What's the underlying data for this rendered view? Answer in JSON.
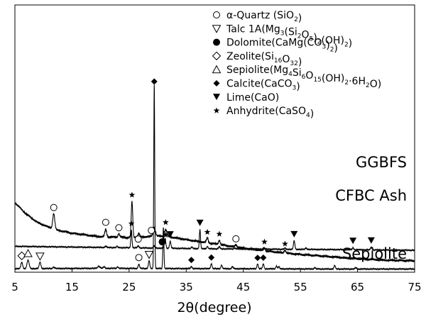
{
  "chart_data": {
    "type": "line",
    "title": "",
    "xlabel": "2θ(degree)",
    "ylabel": "",
    "xlim": [
      5,
      75
    ],
    "xticks": [
      5,
      15,
      25,
      35,
      45,
      55,
      65,
      75
    ],
    "grid": false,
    "legend_position": "top-right",
    "legend": [
      {
        "symbol": "circle-open",
        "parts": [
          [
            "α-Quartz (SiO",
            ""
          ],
          [
            "2",
            "sub"
          ],
          [
            ")",
            ""
          ]
        ]
      },
      {
        "symbol": "triangle-down-open",
        "parts": [
          [
            "Talc 1A(Mg",
            ""
          ],
          [
            "3",
            "sub"
          ],
          [
            "(Si",
            ""
          ],
          [
            "2",
            "sub"
          ],
          [
            "O",
            ""
          ],
          [
            "5",
            "sub"
          ],
          [
            ")",
            ""
          ],
          [
            "2",
            "sub"
          ],
          [
            "(OH)",
            ""
          ],
          [
            "2",
            "sub"
          ],
          [
            ")",
            ""
          ]
        ]
      },
      {
        "symbol": "circle-filled",
        "parts": [
          [
            "Dolomite(CaMg(CO",
            ""
          ],
          [
            "3",
            "sub"
          ],
          [
            ")",
            ""
          ],
          [
            "2",
            "sub"
          ],
          [
            ")",
            ""
          ]
        ]
      },
      {
        "symbol": "diamond-open",
        "parts": [
          [
            "Zeolite(Si",
            ""
          ],
          [
            "16",
            "sub"
          ],
          [
            "O",
            ""
          ],
          [
            "32",
            "sub"
          ],
          [
            ")",
            ""
          ]
        ]
      },
      {
        "symbol": "triangle-up-open",
        "parts": [
          [
            "Sepiolite(Mg",
            ""
          ],
          [
            "4",
            "sub"
          ],
          [
            "Si",
            ""
          ],
          [
            "6",
            "sub"
          ],
          [
            "O",
            ""
          ],
          [
            "15",
            "sub"
          ],
          [
            "(OH)",
            ""
          ],
          [
            "2",
            "sub"
          ],
          [
            "·6H",
            ""
          ],
          [
            "2",
            "sub"
          ],
          [
            "O)",
            ""
          ]
        ]
      },
      {
        "symbol": "diamond-filled",
        "parts": [
          [
            "Calcite(CaCO",
            ""
          ],
          [
            "3",
            "sub"
          ],
          [
            ")",
            ""
          ]
        ]
      },
      {
        "symbol": "triangle-down-filled",
        "parts": [
          [
            "Lime(CaO)",
            ""
          ]
        ]
      },
      {
        "symbol": "star",
        "parts": [
          [
            "Anhydrite(CaSO",
            ""
          ],
          [
            "4",
            "sub"
          ],
          [
            ")",
            ""
          ]
        ]
      }
    ],
    "series": [
      {
        "name": "GGBFS",
        "baseline": [
          [
            5,
            98
          ],
          [
            7,
            82
          ],
          [
            9,
            70
          ],
          [
            12,
            60
          ],
          [
            15,
            55
          ],
          [
            20,
            50
          ],
          [
            25,
            49
          ],
          [
            28,
            50
          ],
          [
            30,
            51
          ],
          [
            32,
            50
          ],
          [
            35,
            46
          ],
          [
            40,
            40
          ],
          [
            45,
            34
          ],
          [
            50,
            29
          ],
          [
            55,
            25
          ],
          [
            60,
            22
          ],
          [
            65,
            19
          ],
          [
            70,
            17
          ],
          [
            75,
            16
          ]
        ],
        "peaks": [
          {
            "x": 11.8,
            "h": 22,
            "w": 0.18
          },
          {
            "x": 20.9,
            "h": 11,
            "w": 0.15
          },
          {
            "x": 23.2,
            "h": 5,
            "w": 0.15
          },
          {
            "x": 25.5,
            "h": 51,
            "w": 0.13
          },
          {
            "x": 26.7,
            "h": 5,
            "w": 0.15
          },
          {
            "x": 29.4,
            "h": 13,
            "w": 0.2
          },
          {
            "x": 31.4,
            "h": 10,
            "w": 0.2
          },
          {
            "x": 38.7,
            "h": 7,
            "w": 0.15
          },
          {
            "x": 40.8,
            "h": 6,
            "w": 0.15
          },
          {
            "x": 43.7,
            "h": 3,
            "w": 0.15
          },
          {
            "x": 48.7,
            "h": 4,
            "w": 0.15
          },
          {
            "x": 52.3,
            "h": 4,
            "w": 0.15
          }
        ]
      },
      {
        "name": "CFBC  Ash",
        "baseline": [
          [
            5,
            36.5
          ],
          [
            20,
            35
          ],
          [
            40,
            33
          ],
          [
            60,
            32
          ],
          [
            75,
            31
          ]
        ],
        "peaks": [
          {
            "x": 20.9,
            "h": 2,
            "w": 0.12
          },
          {
            "x": 22.9,
            "h": 1.5,
            "w": 0.12
          },
          {
            "x": 25.4,
            "h": 25,
            "w": 0.1
          },
          {
            "x": 26.6,
            "h": 3,
            "w": 0.12
          },
          {
            "x": 29.4,
            "h": 3,
            "w": 0.12
          },
          {
            "x": 31.3,
            "h": 14,
            "w": 0.12
          },
          {
            "x": 32.2,
            "h": 10,
            "w": 0.12
          },
          {
            "x": 36.0,
            "h": 2,
            "w": 0.12
          },
          {
            "x": 37.4,
            "h": 27,
            "w": 0.1
          },
          {
            "x": 38.7,
            "h": 3,
            "w": 0.12
          },
          {
            "x": 40.8,
            "h": 3,
            "w": 0.12
          },
          {
            "x": 43.5,
            "h": 1.5,
            "w": 0.12
          },
          {
            "x": 48.6,
            "h": 2,
            "w": 0.12
          },
          {
            "x": 52.3,
            "h": 1.5,
            "w": 0.12
          },
          {
            "x": 53.9,
            "h": 12,
            "w": 0.12
          },
          {
            "x": 56.0,
            "h": 2,
            "w": 0.12
          },
          {
            "x": 64.2,
            "h": 3,
            "w": 0.12
          },
          {
            "x": 67.4,
            "h": 4,
            "w": 0.12
          }
        ]
      },
      {
        "name": "Sepiolite",
        "baseline": [
          [
            5,
            5
          ],
          [
            20,
            5.5
          ],
          [
            40,
            5
          ],
          [
            60,
            4.5
          ],
          [
            75,
            4.5
          ]
        ],
        "peaks": [
          {
            "x": 6.2,
            "h": 9,
            "w": 0.15
          },
          {
            "x": 7.3,
            "h": 12,
            "w": 0.18
          },
          {
            "x": 9.4,
            "h": 9,
            "w": 0.15
          },
          {
            "x": 11.8,
            "h": 2,
            "w": 0.15
          },
          {
            "x": 19.7,
            "h": 3,
            "w": 0.2
          },
          {
            "x": 20.6,
            "h": 2,
            "w": 0.15
          },
          {
            "x": 23.0,
            "h": 2,
            "w": 0.15
          },
          {
            "x": 26.7,
            "h": 6,
            "w": 0.12
          },
          {
            "x": 28.5,
            "h": 11,
            "w": 0.12
          },
          {
            "x": 29.4,
            "h": 262,
            "w": 0.08
          },
          {
            "x": 31.0,
            "h": 58,
            "w": 0.09
          },
          {
            "x": 35.9,
            "h": 3,
            "w": 0.12
          },
          {
            "x": 39.4,
            "h": 7,
            "w": 0.12
          },
          {
            "x": 41.2,
            "h": 5,
            "w": 0.12
          },
          {
            "x": 43.1,
            "h": 3,
            "w": 0.12
          },
          {
            "x": 47.5,
            "h": 7,
            "w": 0.12
          },
          {
            "x": 48.5,
            "h": 7,
            "w": 0.12
          },
          {
            "x": 50.8,
            "h": 4,
            "w": 0.12
          },
          {
            "x": 51.2,
            "h": 3,
            "w": 0.12
          },
          {
            "x": 57.5,
            "h": 2,
            "w": 0.12
          },
          {
            "x": 61.0,
            "h": 5,
            "w": 0.12
          },
          {
            "x": 64.7,
            "h": 2,
            "w": 0.12
          }
        ]
      }
    ],
    "markers": [
      {
        "symbol": "circle-open",
        "x": 11.8,
        "series": "GGBFS"
      },
      {
        "symbol": "circle-open",
        "x": 20.9,
        "series": "GGBFS"
      },
      {
        "symbol": "circle-open",
        "x": 23.2,
        "series": "GGBFS"
      },
      {
        "symbol": "star",
        "x": 25.5,
        "series": "GGBFS"
      },
      {
        "symbol": "diamond-filled",
        "x": 29.4,
        "series": "GGBFS",
        "y_override": 269
      },
      {
        "symbol": "circle-open",
        "x": 28.9,
        "series": "GGBFS"
      },
      {
        "symbol": "star",
        "x": 31.4,
        "series": "GGBFS"
      },
      {
        "symbol": "star",
        "x": 38.7,
        "series": "GGBFS"
      },
      {
        "symbol": "star",
        "x": 40.8,
        "series": "GGBFS"
      },
      {
        "symbol": "circle-open",
        "x": 43.7,
        "series": "GGBFS"
      },
      {
        "symbol": "star",
        "x": 48.7,
        "series": "GGBFS"
      },
      {
        "symbol": "star",
        "x": 52.3,
        "series": "GGBFS"
      },
      {
        "symbol": "star",
        "x": 25.4,
        "series": "CFBC  Ash"
      },
      {
        "symbol": "circle-open",
        "x": 26.6,
        "series": "CFBC  Ash"
      },
      {
        "symbol": "circle-filled",
        "x": 30.8,
        "series": "CFBC  Ash"
      },
      {
        "symbol": "star",
        "x": 31.4,
        "series": "CFBC  Ash"
      },
      {
        "symbol": "triangle-down-filled",
        "x": 32.2,
        "series": "CFBC  Ash"
      },
      {
        "symbol": "triangle-down-filled",
        "x": 37.4,
        "series": "CFBC  Ash"
      },
      {
        "symbol": "triangle-down-filled",
        "x": 53.9,
        "series": "CFBC  Ash"
      },
      {
        "symbol": "triangle-down-filled",
        "x": 64.2,
        "series": "CFBC  Ash"
      },
      {
        "symbol": "triangle-down-filled",
        "x": 67.4,
        "series": "CFBC  Ash"
      },
      {
        "symbol": "diamond-open",
        "x": 6.2,
        "series": "Sepiolite"
      },
      {
        "symbol": "triangle-up-open",
        "x": 7.3,
        "series": "Sepiolite"
      },
      {
        "symbol": "triangle-down-open",
        "x": 9.4,
        "series": "Sepiolite"
      },
      {
        "symbol": "circle-open",
        "x": 26.7,
        "series": "Sepiolite"
      },
      {
        "symbol": "triangle-down-open",
        "x": 28.5,
        "series": "Sepiolite"
      },
      {
        "symbol": "diamond-filled",
        "x": 35.9,
        "series": "Sepiolite"
      },
      {
        "symbol": "diamond-filled",
        "x": 39.4,
        "series": "Sepiolite"
      },
      {
        "symbol": "diamond-filled",
        "x": 47.5,
        "series": "Sepiolite"
      },
      {
        "symbol": "diamond-filled",
        "x": 48.5,
        "series": "Sepiolite"
      }
    ]
  }
}
